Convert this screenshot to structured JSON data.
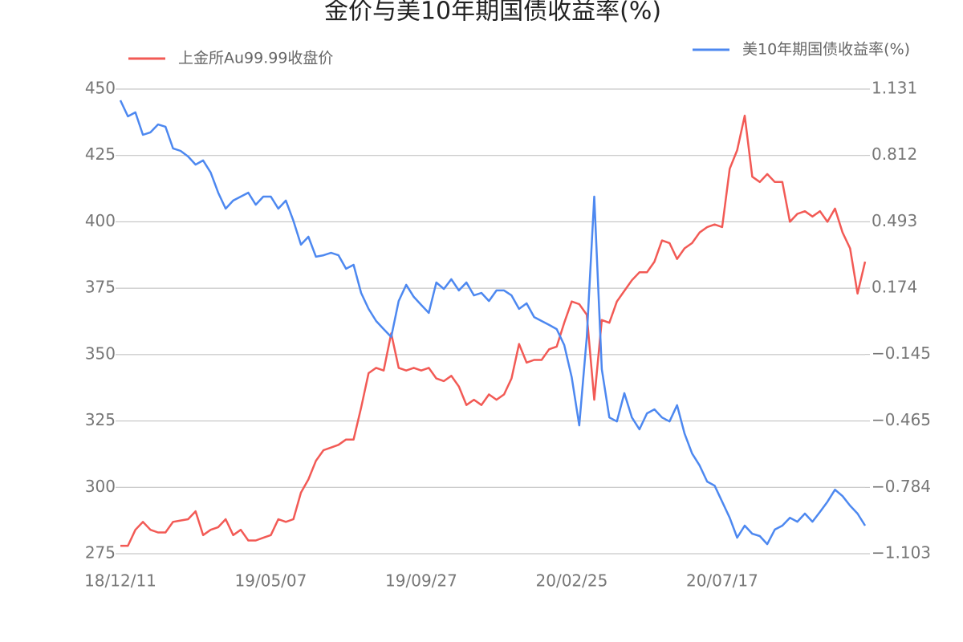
{
  "chart_data": {
    "type": "line",
    "title": "金价与美10年期国债收益率(%)",
    "categories": [
      "18/12/11",
      null,
      null,
      null,
      null,
      null,
      null,
      null,
      null,
      null,
      null,
      null,
      null,
      null,
      null,
      null,
      null,
      null,
      null,
      null,
      "19/05/07",
      null,
      null,
      null,
      null,
      null,
      null,
      null,
      null,
      null,
      null,
      null,
      null,
      null,
      null,
      null,
      null,
      null,
      null,
      null,
      "19/09/27",
      null,
      null,
      null,
      null,
      null,
      null,
      null,
      null,
      null,
      null,
      null,
      null,
      null,
      null,
      null,
      null,
      null,
      null,
      null,
      "20/02/25",
      null,
      null,
      null,
      null,
      null,
      null,
      null,
      null,
      null,
      null,
      null,
      null,
      null,
      null,
      null,
      null,
      null,
      null,
      null,
      "20/07/17",
      null,
      null,
      null,
      null,
      null,
      null,
      null,
      null,
      null,
      null,
      null,
      null,
      null,
      null,
      null,
      null,
      null,
      null,
      null
    ],
    "series": [
      {
        "name": "上金所Au99.99收盘价",
        "color": "#f25a55",
        "values": [
          278,
          278,
          284,
          287,
          284,
          283,
          283,
          287,
          287.5,
          288,
          291,
          282,
          284,
          285,
          288,
          282,
          284,
          280,
          280,
          281,
          282,
          288,
          287,
          288,
          298,
          303,
          310,
          314,
          315,
          316,
          318,
          318,
          330,
          343,
          345,
          344,
          358,
          345,
          344,
          345,
          344,
          345,
          341,
          340,
          342,
          338,
          331,
          333,
          331,
          335,
          333,
          335,
          341,
          354,
          347,
          348,
          348,
          352,
          353,
          362,
          370,
          369,
          365,
          333,
          363,
          362,
          370,
          374,
          378,
          381,
          381,
          385,
          393,
          392,
          386,
          390,
          392,
          396,
          398,
          399,
          398,
          420,
          427,
          440,
          417,
          415,
          418,
          415,
          415,
          400,
          403,
          404,
          402,
          404,
          400,
          405,
          396,
          390,
          373,
          385
        ]
      },
      {
        "name": "美10年期国债收益率(%)",
        "color": "#4d88f0",
        "axis": "y2",
        "values": [
          1.077,
          1.0,
          1.019,
          0.911,
          0.923,
          0.961,
          0.95,
          0.846,
          0.834,
          0.807,
          0.768,
          0.788,
          0.73,
          0.633,
          0.556,
          0.595,
          0.614,
          0.633,
          0.575,
          0.614,
          0.614,
          0.556,
          0.595,
          0.498,
          0.383,
          0.421,
          0.325,
          0.332,
          0.344,
          0.332,
          0.267,
          0.286,
          0.151,
          0.074,
          0.016,
          -0.023,
          -0.061,
          0.112,
          0.19,
          0.132,
          0.093,
          0.055,
          0.201,
          0.17,
          0.217,
          0.163,
          0.201,
          0.139,
          0.151,
          0.112,
          0.163,
          0.163,
          0.139,
          0.074,
          0.101,
          0.035,
          0.016,
          -0.003,
          -0.023,
          -0.1,
          -0.254,
          -0.486,
          -0.061,
          0.614,
          -0.216,
          -0.448,
          -0.467,
          -0.331,
          -0.448,
          -0.505,
          -0.428,
          -0.409,
          -0.448,
          -0.467,
          -0.389,
          -0.525,
          -0.621,
          -0.679,
          -0.756,
          -0.776,
          -0.853,
          -0.93,
          -1.026,
          -0.968,
          -1.007,
          -1.018,
          -1.057,
          -0.987,
          -0.968,
          -0.93,
          -0.949,
          -0.91,
          -0.949,
          -0.902,
          -0.853,
          -0.795,
          -0.826,
          -0.872,
          -0.91,
          -0.968
        ]
      }
    ],
    "ylim": [
      275,
      450
    ],
    "yticks": [
      275,
      300,
      325,
      350,
      375,
      400,
      425,
      450
    ],
    "y2lim": [
      -1.103,
      1.131
    ],
    "y2ticks": [
      {
        "value": -1.103,
        "label": "−1.103"
      },
      {
        "value": -0.784,
        "label": "−0.784"
      },
      {
        "value": -0.465,
        "label": "−0.465"
      },
      {
        "value": -0.145,
        "label": "−0.145"
      },
      0.174,
      0.493,
      0.812,
      1.131
    ],
    "grid": true
  }
}
